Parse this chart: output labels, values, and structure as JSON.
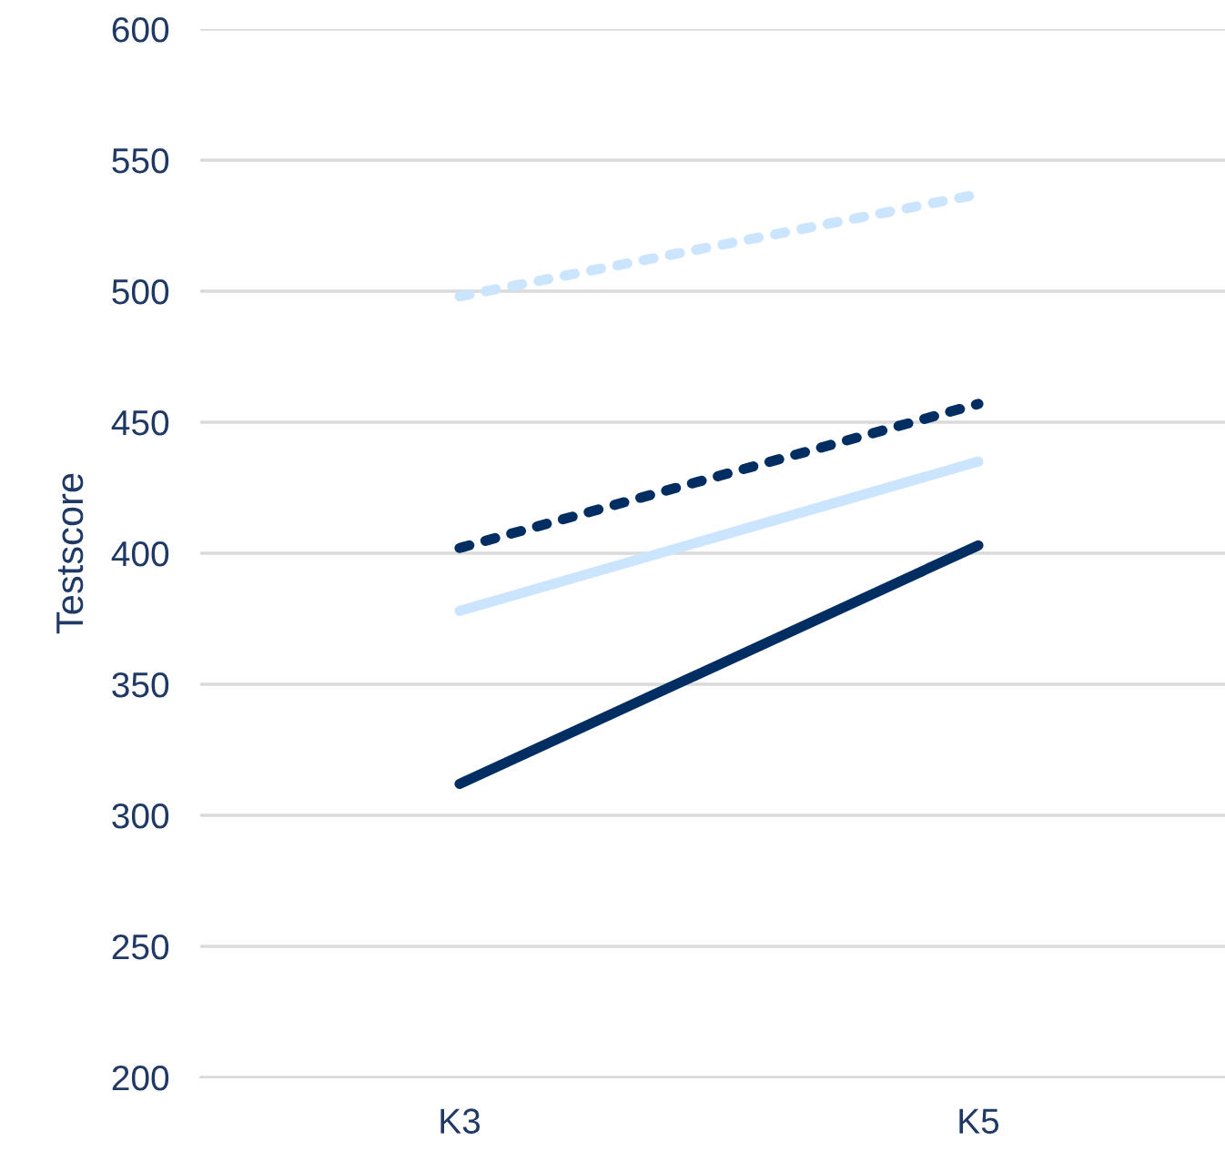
{
  "chart_data": {
    "type": "line",
    "ylabel": "Testscore",
    "categories": [
      "K3",
      "K5"
    ],
    "series": [
      {
        "color": "#cce5ff",
        "line_style": "dotted",
        "values": [
          498,
          537
        ]
      },
      {
        "color": "#002d62",
        "line_style": "dotted",
        "values": [
          402,
          457
        ]
      },
      {
        "color": "#cce5ff",
        "line_style": "solid",
        "values": [
          378,
          435
        ]
      },
      {
        "color": "#002d62",
        "line_style": "solid",
        "values": [
          312,
          403
        ]
      }
    ],
    "ylim": [
      200,
      600
    ],
    "yticks": [
      200,
      250,
      300,
      350,
      400,
      450,
      500,
      550,
      600
    ],
    "grid": "y",
    "marker": "none"
  }
}
